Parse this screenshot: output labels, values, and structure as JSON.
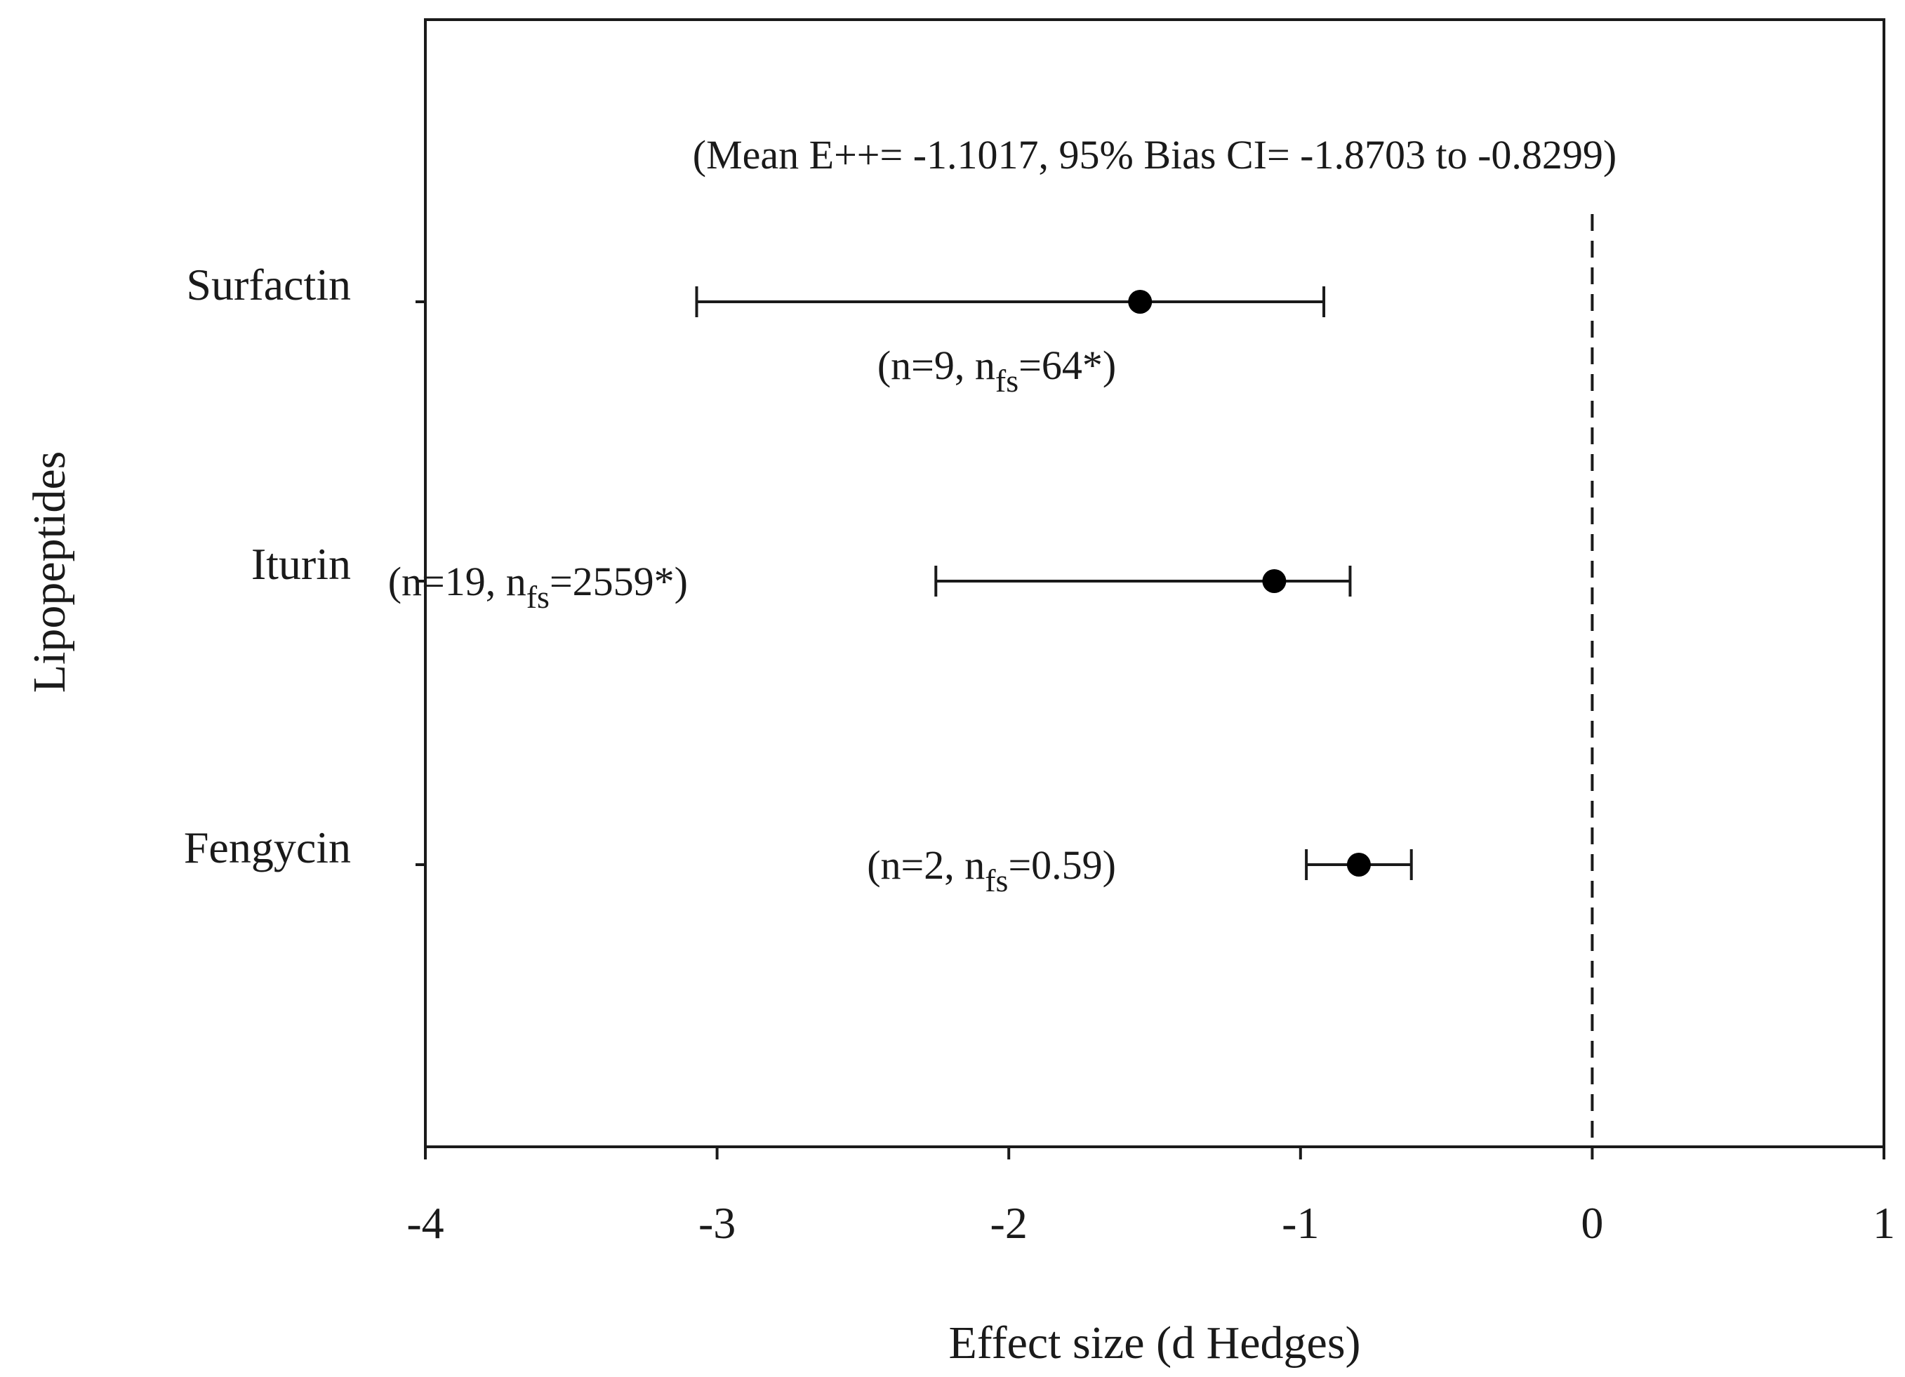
{
  "chart_data": {
    "type": "scatter",
    "subtype": "forest-plot",
    "xlabel": "Effect  size  (d Hedges)",
    "ylabel": "Lipopeptides",
    "xlim": [
      -4,
      1
    ],
    "xticks": [
      "-4",
      "-3",
      "-2",
      "-1",
      "0",
      "1"
    ],
    "reference_line": {
      "x": 0,
      "style": "dashed"
    },
    "summary": "(Mean E++= -1.1017, 95% Bias CI= -1.8703 to -0.8299)",
    "categories": [
      "Surfactin",
      "Iturin",
      "Fengycin"
    ],
    "points": [
      {
        "label": "Surfactin",
        "mean": -1.55,
        "ci_low": -3.07,
        "ci_high": -0.92,
        "ann_open": "(n=9, n",
        "ann_sub": "fs",
        "ann_close": "=64*)"
      },
      {
        "label": "Iturin",
        "mean": -1.09,
        "ci_low": -2.25,
        "ci_high": -0.83,
        "ann_open": "(n=19, n",
        "ann_sub": "fs",
        "ann_close": "=2559*)"
      },
      {
        "label": "Fengycin",
        "mean": -0.8,
        "ci_low": -0.98,
        "ci_high": -0.62,
        "ann_open": "(n=2, n",
        "ann_sub": "fs",
        "ann_close": "=0.59)"
      }
    ],
    "colors": {
      "marker": "#000000",
      "line": "#1a1a1a",
      "frame": "#1a1a1a"
    }
  }
}
